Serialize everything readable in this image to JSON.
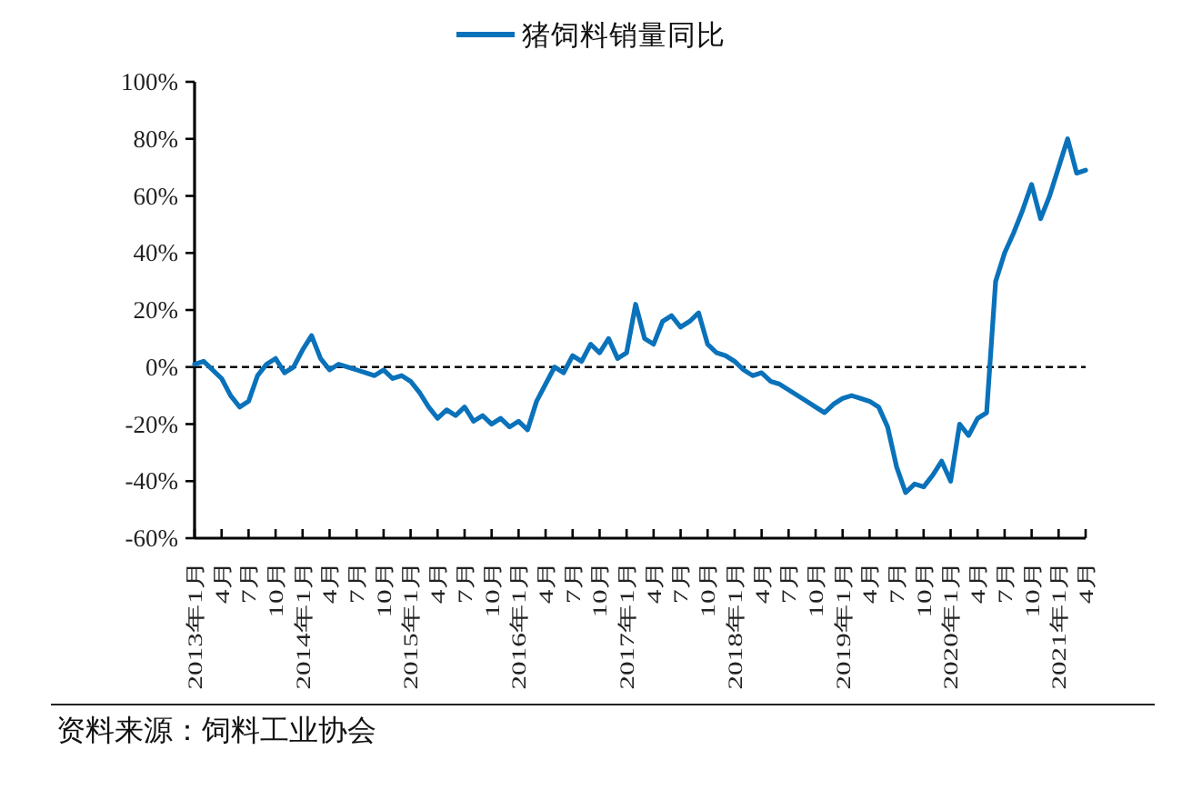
{
  "chart_data": {
    "type": "line",
    "legend": "top",
    "annotations": [
      "资料来源：饲料工业协会"
    ],
    "x": [
      "2013-01",
      "2013-02",
      "2013-03",
      "2013-04",
      "2013-05",
      "2013-06",
      "2013-07",
      "2013-08",
      "2013-09",
      "2013-10",
      "2013-11",
      "2013-12",
      "2014-01",
      "2014-02",
      "2014-03",
      "2014-04",
      "2014-05",
      "2014-06",
      "2014-07",
      "2014-08",
      "2014-09",
      "2014-10",
      "2014-11",
      "2014-12",
      "2015-01",
      "2015-02",
      "2015-03",
      "2015-04",
      "2015-05",
      "2015-06",
      "2015-07",
      "2015-08",
      "2015-09",
      "2015-10",
      "2015-11",
      "2015-12",
      "2016-01",
      "2016-02",
      "2016-03",
      "2016-04",
      "2016-05",
      "2016-06",
      "2016-07",
      "2016-08",
      "2016-09",
      "2016-10",
      "2016-11",
      "2016-12",
      "2017-01",
      "2017-02",
      "2017-03",
      "2017-04",
      "2017-05",
      "2017-06",
      "2017-07",
      "2017-08",
      "2017-09",
      "2017-10",
      "2017-11",
      "2017-12",
      "2018-01",
      "2018-02",
      "2018-03",
      "2018-04",
      "2018-05",
      "2018-06",
      "2018-07",
      "2018-08",
      "2018-09",
      "2018-10",
      "2018-11",
      "2018-12",
      "2019-01",
      "2019-02",
      "2019-03",
      "2019-04",
      "2019-05",
      "2019-06",
      "2019-07",
      "2019-08",
      "2019-09",
      "2019-10",
      "2019-11",
      "2019-12",
      "2020-01",
      "2020-02",
      "2020-03",
      "2020-04",
      "2020-05",
      "2020-06",
      "2020-07",
      "2020-08",
      "2020-09",
      "2020-10",
      "2020-11",
      "2020-12",
      "2021-01",
      "2021-02",
      "2021-03",
      "2021-04"
    ],
    "series": [
      {
        "name": "猪饲料销量同比",
        "color": "#0a72ba",
        "values": [
          1,
          2,
          -1,
          -4,
          -10,
          -14,
          -12,
          -3,
          1,
          3,
          -2,
          0,
          6,
          11,
          3,
          -1,
          1,
          0,
          -1,
          -2,
          -3,
          -1,
          -4,
          -3,
          -5,
          -9,
          -14,
          -18,
          -15,
          -17,
          -14,
          -19,
          -17,
          -20,
          -18,
          -21,
          -19,
          -22,
          -12,
          -6,
          0,
          -2,
          4,
          2,
          8,
          5,
          10,
          3,
          5,
          22,
          10,
          8,
          16,
          18,
          14,
          16,
          19,
          8,
          5,
          4,
          2,
          -1,
          -3,
          -2,
          -5,
          -6,
          -8,
          -10,
          -12,
          -14,
          -16,
          -13,
          -11,
          -10,
          -11,
          -12,
          -14,
          -21,
          -35,
          -44,
          -41,
          -42,
          -38,
          -33,
          -40,
          -20,
          -24,
          -18,
          -16,
          30,
          40,
          47,
          55,
          64,
          52,
          60,
          70,
          80,
          68,
          69
        ]
      }
    ],
    "xlim": [
      "2013-01",
      "2021-04"
    ],
    "xticks": [
      {
        "value": "2013-01",
        "label": "2013年1月"
      },
      {
        "value": "2013-04",
        "label": "4月"
      },
      {
        "value": "2013-07",
        "label": "7月"
      },
      {
        "value": "2013-10",
        "label": "10月"
      },
      {
        "value": "2014-01",
        "label": "2014年1月"
      },
      {
        "value": "2014-04",
        "label": "4月"
      },
      {
        "value": "2014-07",
        "label": "7月"
      },
      {
        "value": "2014-10",
        "label": "10月"
      },
      {
        "value": "2015-01",
        "label": "2015年1月"
      },
      {
        "value": "2015-04",
        "label": "4月"
      },
      {
        "value": "2015-07",
        "label": "7月"
      },
      {
        "value": "2015-10",
        "label": "10月"
      },
      {
        "value": "2016-01",
        "label": "2016年1月"
      },
      {
        "value": "2016-04",
        "label": "4月"
      },
      {
        "value": "2016-07",
        "label": "7月"
      },
      {
        "value": "2016-10",
        "label": "10月"
      },
      {
        "value": "2017-01",
        "label": "2017年1月"
      },
      {
        "value": "2017-04",
        "label": "4月"
      },
      {
        "value": "2017-07",
        "label": "7月"
      },
      {
        "value": "2017-10",
        "label": "10月"
      },
      {
        "value": "2018-01",
        "label": "2018年1月"
      },
      {
        "value": "2018-04",
        "label": "4月"
      },
      {
        "value": "2018-07",
        "label": "7月"
      },
      {
        "value": "2018-10",
        "label": "10月"
      },
      {
        "value": "2019-01",
        "label": "2019年1月"
      },
      {
        "value": "2019-04",
        "label": "4月"
      },
      {
        "value": "2019-07",
        "label": "7月"
      },
      {
        "value": "2019-10",
        "label": "10月"
      },
      {
        "value": "2020-01",
        "label": "2020年1月"
      },
      {
        "value": "2020-04",
        "label": "4月"
      },
      {
        "value": "2020-07",
        "label": "7月"
      },
      {
        "value": "2020-10",
        "label": "10月"
      },
      {
        "value": "2021-01",
        "label": "2021年1月"
      },
      {
        "value": "2021-04",
        "label": "4月"
      }
    ],
    "ylim": [
      -60,
      100
    ],
    "yticks": [
      {
        "value": -60,
        "label": "-60%"
      },
      {
        "value": -40,
        "label": "-40%"
      },
      {
        "value": -20,
        "label": "-20%"
      },
      {
        "value": 0,
        "label": "0%"
      },
      {
        "value": 20,
        "label": "20%"
      },
      {
        "value": 40,
        "label": "40%"
      },
      {
        "value": 60,
        "label": "60%"
      },
      {
        "value": 80,
        "label": "80%"
      },
      {
        "value": 100,
        "label": "100%"
      }
    ],
    "ref_lines": [
      {
        "axis": "y",
        "value": 0,
        "color": "#000000",
        "line_style": "dashed"
      }
    ]
  }
}
